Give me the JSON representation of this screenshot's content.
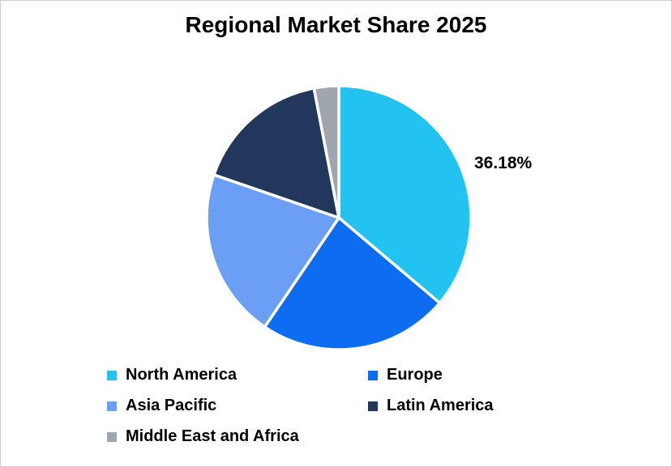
{
  "chart": {
    "title": "Regional Market Share 2025",
    "data_label": "36.18%"
  },
  "chart_data": {
    "type": "pie",
    "title": "Regional Market Share 2025",
    "categories": [
      "North America",
      "Europe",
      "Asia Pacific",
      "Latin America",
      "Middle East and Africa"
    ],
    "values": [
      36.18,
      23.3,
      20.8,
      16.7,
      3.02
    ],
    "colors": [
      "#22C3F0",
      "#0C6CF2",
      "#6B9FF5",
      "#21375B",
      "#A0A6AD"
    ],
    "start_angle_deg": 0,
    "direction": "clockwise",
    "slice_border_color": "#FFFFFF",
    "labels_shown": [
      "36.18%",
      "",
      "",
      "",
      ""
    ],
    "legend_position": "bottom"
  },
  "legend": {
    "items": [
      {
        "label": "North America",
        "color": "#22C3F0"
      },
      {
        "label": "Europe",
        "color": "#0C6CF2"
      },
      {
        "label": "Asia Pacific",
        "color": "#6B9FF5"
      },
      {
        "label": "Latin America",
        "color": "#21375B"
      },
      {
        "label": "Middle East and Africa",
        "color": "#A0A6AD"
      }
    ]
  }
}
